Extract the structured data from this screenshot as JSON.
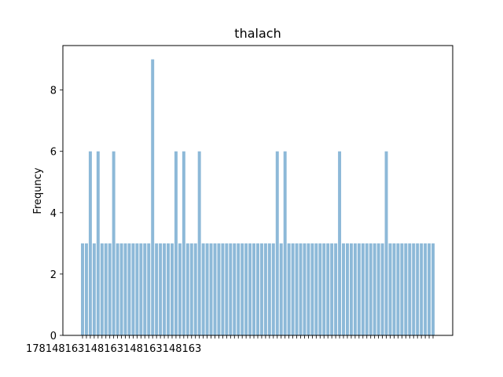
{
  "chart_data": {
    "type": "bar",
    "title": "thalach",
    "xlabel": "",
    "ylabel": "Frequncy",
    "ylim": [
      0,
      9.45
    ],
    "yticks": [
      0,
      2,
      4,
      6,
      8
    ],
    "xtick_labels_note": "x tick labels are heavily overlapped and illegible; only fragments such as 178, 148, 163 are partially visible",
    "values": [
      3,
      3,
      6,
      3,
      6,
      3,
      3,
      3,
      6,
      3,
      3,
      3,
      3,
      3,
      3,
      3,
      3,
      3,
      9,
      3,
      3,
      3,
      3,
      3,
      6,
      3,
      6,
      3,
      3,
      3,
      6,
      3,
      3,
      3,
      3,
      3,
      3,
      3,
      3,
      3,
      3,
      3,
      3,
      3,
      3,
      3,
      3,
      3,
      3,
      3,
      6,
      3,
      6,
      3,
      3,
      3,
      3,
      3,
      3,
      3,
      3,
      3,
      3,
      3,
      3,
      3,
      6,
      3,
      3,
      3,
      3,
      3,
      3,
      3,
      3,
      3,
      3,
      3,
      6,
      3,
      3,
      3,
      3,
      3,
      3,
      3,
      3,
      3,
      3,
      3,
      3
    ],
    "bar_color": "#8db9d8",
    "grid": false
  }
}
